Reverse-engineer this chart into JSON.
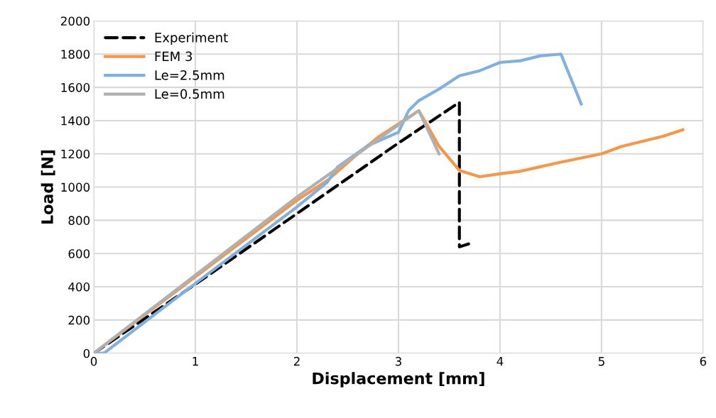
{
  "chart_data": {
    "type": "line",
    "xlabel": "Displacement [mm]",
    "ylabel": "Load [N]",
    "xlim": [
      0,
      6
    ],
    "ylim": [
      0,
      2000
    ],
    "xticks": [
      0,
      1,
      2,
      3,
      4,
      5,
      6
    ],
    "yticks": [
      0,
      200,
      400,
      600,
      800,
      1000,
      1200,
      1400,
      1600,
      1800,
      2000
    ],
    "grid": true,
    "legend": "top left",
    "marker": "none",
    "series": [
      {
        "name": "Experiment",
        "color": "#000000",
        "line_style": "dashed",
        "x": [
          0,
          1,
          2,
          3,
          3.6,
          3.6,
          3.7
        ],
        "values": [
          0,
          415,
          840,
          1265,
          1510,
          640,
          660
        ]
      },
      {
        "name": "FEM 3",
        "color": "#f79646",
        "line_style": "solid",
        "x": [
          0,
          1,
          2,
          2.3,
          2.6,
          2.8,
          3.2,
          3.4,
          3.6,
          3.8,
          4,
          4.2,
          4.6,
          5,
          5.2,
          5.6,
          5.8
        ],
        "values": [
          0,
          460,
          920,
          1040,
          1200,
          1300,
          1460,
          1245,
          1100,
          1062,
          1080,
          1095,
          1150,
          1200,
          1245,
          1305,
          1345
        ]
      },
      {
        "name": "Le=2.5mm",
        "color": "#7eb0e0",
        "line_style": "solid",
        "x": [
          0,
          0.1,
          1,
          2,
          2.3,
          2.4,
          2.7,
          3,
          3.1,
          3.2,
          3.4,
          3.6,
          3.8,
          4,
          4.2,
          4.4,
          4.6,
          4.8
        ],
        "values": [
          0,
          0,
          420,
          880,
          1030,
          1120,
          1250,
          1330,
          1460,
          1520,
          1590,
          1670,
          1700,
          1750,
          1760,
          1790,
          1800,
          1500
        ]
      },
      {
        "name": "Le=0.5mm",
        "color": "#b0b0b0",
        "line_style": "solid",
        "x": [
          0,
          1,
          2,
          3.2,
          3.4
        ],
        "values": [
          0,
          470,
          940,
          1460,
          1200
        ]
      }
    ]
  }
}
